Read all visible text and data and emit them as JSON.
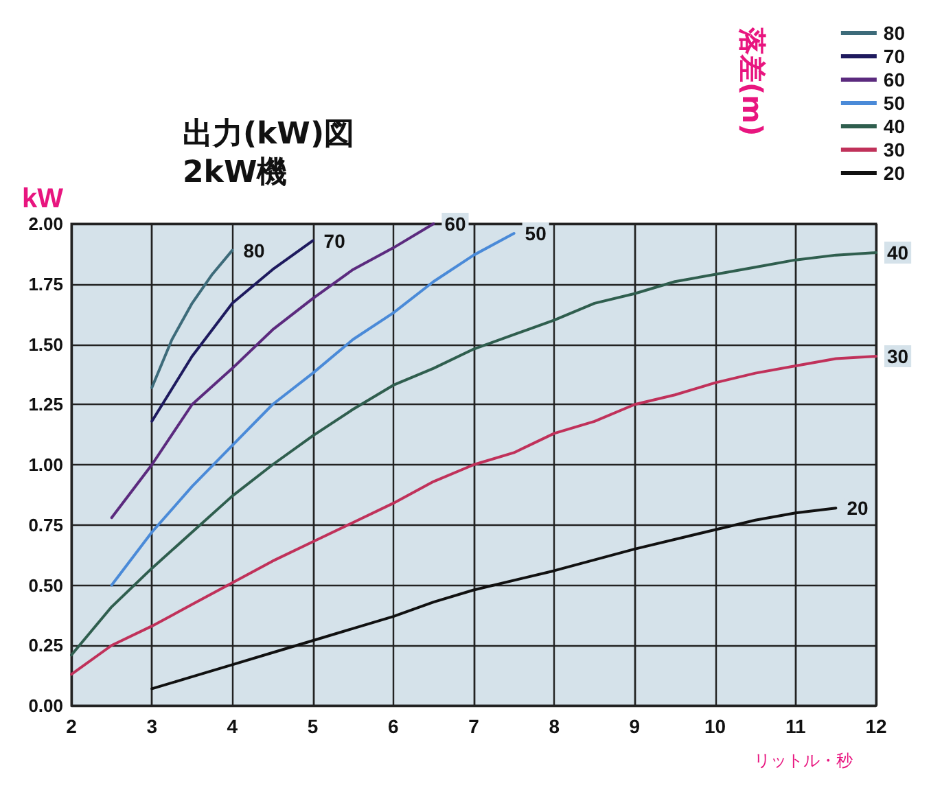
{
  "chart_data": {
    "type": "line",
    "title": "出力(kW)図",
    "subtitle": "2kW機",
    "xlabel": "リットル・秒",
    "ylabel": "kW",
    "legend_title": "落差(m)",
    "legend": "top right",
    "grid": true,
    "marker": "none",
    "line_style": "solid",
    "xlim": [
      2,
      12
    ],
    "xticks": [
      2,
      3,
      4,
      5,
      6,
      7,
      8,
      9,
      10,
      11,
      12
    ],
    "ylim": [
      0,
      2
    ],
    "yticks": [
      {
        "value": 0,
        "label": "0.00"
      },
      {
        "value": 0.25,
        "label": "0.25"
      },
      {
        "value": 0.5,
        "label": "0.50"
      },
      {
        "value": 0.75,
        "label": "0.75"
      },
      {
        "value": 1,
        "label": "1.00"
      },
      {
        "value": 1.25,
        "label": "1.25"
      },
      {
        "value": 1.5,
        "label": "1.50"
      },
      {
        "value": 1.75,
        "label": "1.75"
      },
      {
        "value": 2,
        "label": "2.00"
      }
    ],
    "series": [
      {
        "name": "80",
        "color": "#3d6b7a",
        "x": [
          3,
          3.25,
          3.5,
          3.75,
          4
        ],
        "values": [
          1.32,
          1.52,
          1.67,
          1.79,
          1.89
        ]
      },
      {
        "name": "70",
        "color": "#1e1a5e",
        "x": [
          3,
          3.5,
          4,
          4.5,
          5
        ],
        "values": [
          1.18,
          1.45,
          1.67,
          1.81,
          1.93
        ]
      },
      {
        "name": "60",
        "color": "#5b2a7e",
        "x": [
          2.5,
          3,
          3.5,
          4,
          4.5,
          5,
          5.5,
          6,
          6.5
        ],
        "values": [
          0.78,
          1.0,
          1.25,
          1.4,
          1.56,
          1.69,
          1.81,
          1.9,
          2.0
        ]
      },
      {
        "name": "50",
        "color": "#4a8ad8",
        "x": [
          2.5,
          3,
          3.5,
          4,
          4.5,
          5,
          5.5,
          6,
          6.5,
          7,
          7.5
        ],
        "values": [
          0.5,
          0.72,
          0.91,
          1.08,
          1.25,
          1.38,
          1.52,
          1.63,
          1.76,
          1.87,
          1.96
        ]
      },
      {
        "name": "40",
        "color": "#2f5e4e",
        "x": [
          2,
          2.5,
          3,
          3.5,
          4,
          4.5,
          5,
          5.5,
          6,
          6.5,
          7,
          7.5,
          8,
          8.5,
          9,
          9.5,
          10,
          10.5,
          11,
          11.5,
          12
        ],
        "values": [
          0.21,
          0.41,
          0.57,
          0.72,
          0.87,
          1.0,
          1.12,
          1.23,
          1.33,
          1.4,
          1.48,
          1.54,
          1.6,
          1.67,
          1.71,
          1.76,
          1.79,
          1.82,
          1.85,
          1.87,
          1.88
        ]
      },
      {
        "name": "30",
        "color": "#c0315a",
        "x": [
          2,
          2.5,
          3,
          3.5,
          4,
          4.5,
          5,
          5.5,
          6,
          6.5,
          7,
          7.5,
          8,
          8.5,
          9,
          9.5,
          10,
          10.5,
          11,
          11.5,
          12
        ],
        "values": [
          0.13,
          0.25,
          0.33,
          0.42,
          0.51,
          0.6,
          0.68,
          0.76,
          0.84,
          0.93,
          1.0,
          1.05,
          1.13,
          1.18,
          1.25,
          1.29,
          1.34,
          1.38,
          1.41,
          1.44,
          1.45
        ]
      },
      {
        "name": "20",
        "color": "#111111",
        "x": [
          3,
          3.5,
          4,
          4.5,
          5,
          5.5,
          6,
          6.5,
          7,
          8,
          9,
          10,
          10.5,
          11,
          11.5
        ],
        "values": [
          0.07,
          0.12,
          0.17,
          0.22,
          0.27,
          0.32,
          0.37,
          0.43,
          0.48,
          0.56,
          0.65,
          0.73,
          0.77,
          0.8,
          0.82
        ]
      }
    ]
  }
}
